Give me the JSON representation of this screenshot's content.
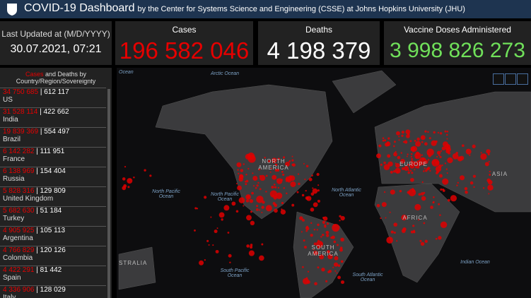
{
  "header": {
    "title": "COVID-19 Dashboard",
    "subtitle": "by the Center for Systems Science and Engineering (CSSE) at Johns Hopkins University (JHU)"
  },
  "updated": {
    "label": "Last Updated at (M/D/YYYY)",
    "value": "30.07.2021, 07:21"
  },
  "totals": [
    {
      "label": "Cases",
      "value": "196 582 046"
    },
    {
      "label": "Deaths",
      "value": "4 198 379"
    },
    {
      "label": "Vaccine Doses Administered",
      "value": "3 998 826 273"
    }
  ],
  "list": {
    "title_cases": "Cases",
    "title_rest": "and Deaths by Country/Region/Sovereignty",
    "rows": [
      {
        "cases": "34 750 685",
        "deaths": "612 117",
        "country": "US"
      },
      {
        "cases": "31 528 114",
        "deaths": "422 662",
        "country": "India"
      },
      {
        "cases": "19 839 369",
        "deaths": "554 497",
        "country": "Brazil"
      },
      {
        "cases": "6 142 282",
        "deaths": "111 951",
        "country": "France"
      },
      {
        "cases": "6 138 969",
        "deaths": "154 404",
        "country": "Russia"
      },
      {
        "cases": "5 828 316",
        "deaths": "129 809",
        "country": "United Kingdom"
      },
      {
        "cases": "5 682 630",
        "deaths": "51 184",
        "country": "Turkey"
      },
      {
        "cases": "4 905 925",
        "deaths": "105 113",
        "country": "Argentina"
      },
      {
        "cases": "4 766 829",
        "deaths": "120 126",
        "country": "Colombia"
      },
      {
        "cases": "4 422 291",
        "deaths": "81 442",
        "country": "Spain"
      },
      {
        "cases": "4 336 906",
        "deaths": "128 029",
        "country": "Italy"
      }
    ]
  },
  "map": {
    "labels": [
      {
        "text": "Ocean"
      },
      {
        "text": "Arctic Ocean"
      },
      {
        "text": "North Pacific Ocean"
      },
      {
        "text": "North Pacific Ocean"
      },
      {
        "text": "North Atlantic Ocean"
      },
      {
        "text": "NORTH AMERICA"
      },
      {
        "text": "EUROPE"
      },
      {
        "text": "ASIA"
      },
      {
        "text": "AFRICA"
      },
      {
        "text": "SOUTH AMERICA"
      },
      {
        "text": "STRALIA"
      },
      {
        "text": "Indian Ocean"
      },
      {
        "text": "South Atlantic Ocean"
      },
      {
        "text": "South Pacific Ocean"
      }
    ]
  }
}
